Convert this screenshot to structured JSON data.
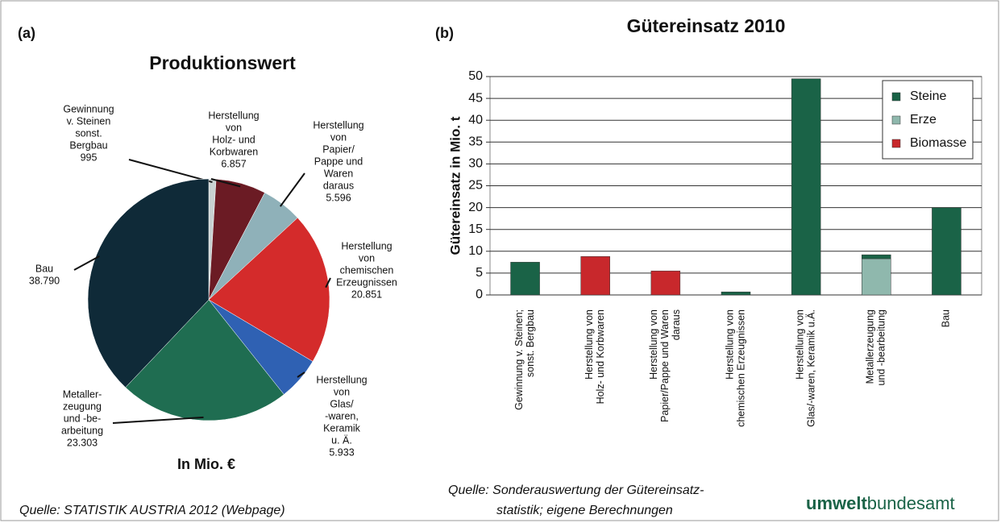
{
  "chart_data": [
    {
      "type": "pie",
      "panel_label": "(a)",
      "title": "Produktionswert",
      "annotation": "In Mio. €",
      "source": "Quelle: STATISTIK AUSTRIA 2012 (Webpage)",
      "categories": [
        [
          "Gewinnung",
          "v. Steinen",
          "sonst.",
          "Bergbau"
        ],
        [
          "Herstellung",
          "von",
          "Holz- und",
          "Korbwaren"
        ],
        [
          "Herstellung",
          "von",
          "Papier/",
          "Pappe und",
          "Waren",
          "daraus"
        ],
        [
          "Herstellung",
          "von",
          "chemischen",
          "Erzeugnissen"
        ],
        [
          "Herstellung",
          "von",
          "Glas/",
          "-waren,",
          "Keramik",
          "u. Ä."
        ],
        [
          "Metaller-",
          "zeugung",
          "und -be-",
          "arbeitung"
        ],
        [
          "Bau"
        ]
      ],
      "values": [
        995,
        6857,
        5596,
        20851,
        5933,
        23303,
        38790
      ],
      "value_labels": [
        "995",
        "6.857",
        "5.596",
        "20.851",
        "5.933",
        "23.303",
        "38.790"
      ],
      "colors": [
        "#c9d2d2",
        "#6b1b24",
        "#8fb1b9",
        "#d42b2b",
        "#2f61b3",
        "#1f6d51",
        "#0f2a38"
      ]
    },
    {
      "type": "bar",
      "stacked": true,
      "panel_label": "(b)",
      "title": "Gütereinsatz 2010",
      "y_label": "Gütereinsatz in Mio. t",
      "source": [
        "Quelle: Sonderauswertung der Gütereinsatz-",
        "statistik; eigene Berechnungen"
      ],
      "logo": [
        "umwelt",
        "bundesamt"
      ],
      "categories": [
        [
          "Gewinnung v. Steinen;",
          "sonst. Bergbau"
        ],
        [
          "Herstellung von",
          "Holz- und Korbwaren"
        ],
        [
          "Herstellung von",
          "Papier/Pappe und Waren",
          "daraus"
        ],
        [
          "Herstellung von",
          "chemischen Erzeugnissen"
        ],
        [
          "Herstellung von",
          "Glas/-waren, Keramik u.Ä."
        ],
        [
          "Metallerzeugung",
          "und -bearbeitung"
        ],
        [
          "Bau"
        ]
      ],
      "series": [
        {
          "name": "Steine",
          "color": "#1a6347",
          "values": [
            7.5,
            0,
            0,
            0.7,
            49.5,
            0.9,
            20
          ]
        },
        {
          "name": "Erze",
          "color": "#8fb8ad",
          "values": [
            0,
            0,
            0,
            0,
            0,
            8.3,
            0
          ]
        },
        {
          "name": "Biomasse",
          "color": "#c8282c",
          "values": [
            0,
            8.8,
            5.5,
            0,
            0,
            0,
            0
          ]
        }
      ],
      "ylim": [
        0,
        50
      ],
      "yticks": [
        0,
        5,
        10,
        15,
        20,
        25,
        30,
        35,
        40,
        45,
        50
      ],
      "grid": true,
      "legend": "top-right"
    }
  ]
}
